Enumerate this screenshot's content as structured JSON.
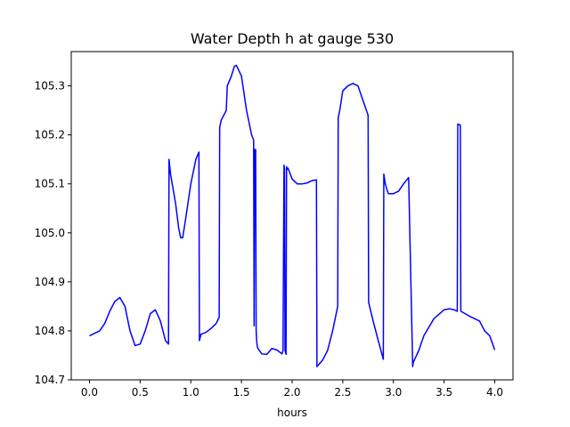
{
  "chart_data": {
    "type": "line",
    "title": "Water Depth h at gauge 530",
    "xlabel": "hours",
    "ylabel": "",
    "xlim": [
      -0.18,
      4.18
    ],
    "ylim": [
      104.7,
      105.37
    ],
    "xticks": [
      0.0,
      0.5,
      1.0,
      1.5,
      2.0,
      2.5,
      3.0,
      3.5,
      4.0
    ],
    "xtick_labels": [
      "0.0",
      "0.5",
      "1.0",
      "1.5",
      "2.0",
      "2.5",
      "3.0",
      "3.5",
      "4.0"
    ],
    "yticks": [
      104.7,
      104.8,
      104.9,
      105.0,
      105.1,
      105.2,
      105.3
    ],
    "ytick_labels": [
      "104.7",
      "104.8",
      "104.9",
      "105.0",
      "105.1",
      "105.2",
      "105.3"
    ],
    "grid": false,
    "legend": "none",
    "series": [
      {
        "color": "#0000ff",
        "x": [
          0.0,
          0.1,
          0.15,
          0.2,
          0.25,
          0.3,
          0.35,
          0.4,
          0.45,
          0.5,
          0.55,
          0.6,
          0.65,
          0.7,
          0.75,
          0.78,
          0.785,
          0.8,
          0.85,
          0.88,
          0.9,
          0.92,
          0.95,
          1.0,
          1.05,
          1.08,
          1.085,
          1.1,
          1.15,
          1.2,
          1.25,
          1.28,
          1.285,
          1.3,
          1.35,
          1.36,
          1.4,
          1.43,
          1.45,
          1.5,
          1.55,
          1.6,
          1.62,
          1.625,
          1.63,
          1.64,
          1.645,
          1.65,
          1.655,
          1.66,
          1.7,
          1.75,
          1.8,
          1.85,
          1.9,
          1.91,
          1.92,
          1.925,
          1.93,
          1.94,
          1.945,
          1.95,
          1.96,
          2.0,
          2.05,
          2.1,
          2.15,
          2.2,
          2.24,
          2.245,
          2.3,
          2.35,
          2.4,
          2.45,
          2.455,
          2.47,
          2.5,
          2.55,
          2.6,
          2.65,
          2.7,
          2.75,
          2.755,
          2.8,
          2.85,
          2.9,
          2.905,
          2.92,
          2.93,
          2.95,
          3.0,
          3.05,
          3.1,
          3.15,
          3.19,
          3.195,
          3.25,
          3.3,
          3.4,
          3.5,
          3.55,
          3.6,
          3.63,
          3.635,
          3.66,
          3.665,
          3.75,
          3.85,
          3.9,
          3.95,
          4.0
        ],
        "values": [
          104.79,
          104.8,
          104.815,
          104.84,
          104.86,
          104.868,
          104.85,
          104.8,
          104.77,
          104.773,
          104.8,
          104.835,
          104.843,
          104.82,
          104.78,
          104.773,
          105.15,
          105.12,
          105.06,
          105.01,
          104.99,
          104.99,
          105.03,
          105.1,
          105.15,
          105.165,
          104.78,
          104.793,
          104.797,
          104.805,
          104.815,
          104.828,
          105.215,
          105.23,
          105.25,
          105.3,
          105.32,
          105.34,
          105.342,
          105.32,
          105.25,
          105.2,
          105.19,
          104.81,
          105.17,
          105.17,
          104.8,
          104.78,
          104.77,
          104.765,
          104.753,
          104.752,
          104.764,
          104.761,
          104.753,
          104.76,
          105.138,
          105.13,
          104.76,
          104.752,
          105.135,
          105.13,
          105.132,
          105.11,
          105.1,
          105.1,
          105.102,
          105.107,
          105.108,
          104.727,
          104.74,
          104.76,
          104.8,
          104.85,
          105.235,
          105.25,
          105.29,
          105.3,
          105.305,
          105.3,
          105.27,
          105.24,
          104.858,
          104.82,
          104.78,
          104.742,
          105.12,
          105.1,
          105.092,
          105.08,
          105.08,
          105.085,
          105.1,
          105.113,
          104.727,
          104.735,
          104.76,
          104.79,
          104.825,
          104.843,
          104.845,
          104.843,
          104.84,
          105.222,
          105.22,
          104.84,
          104.83,
          104.82,
          104.8,
          104.79,
          104.761
        ]
      }
    ]
  }
}
